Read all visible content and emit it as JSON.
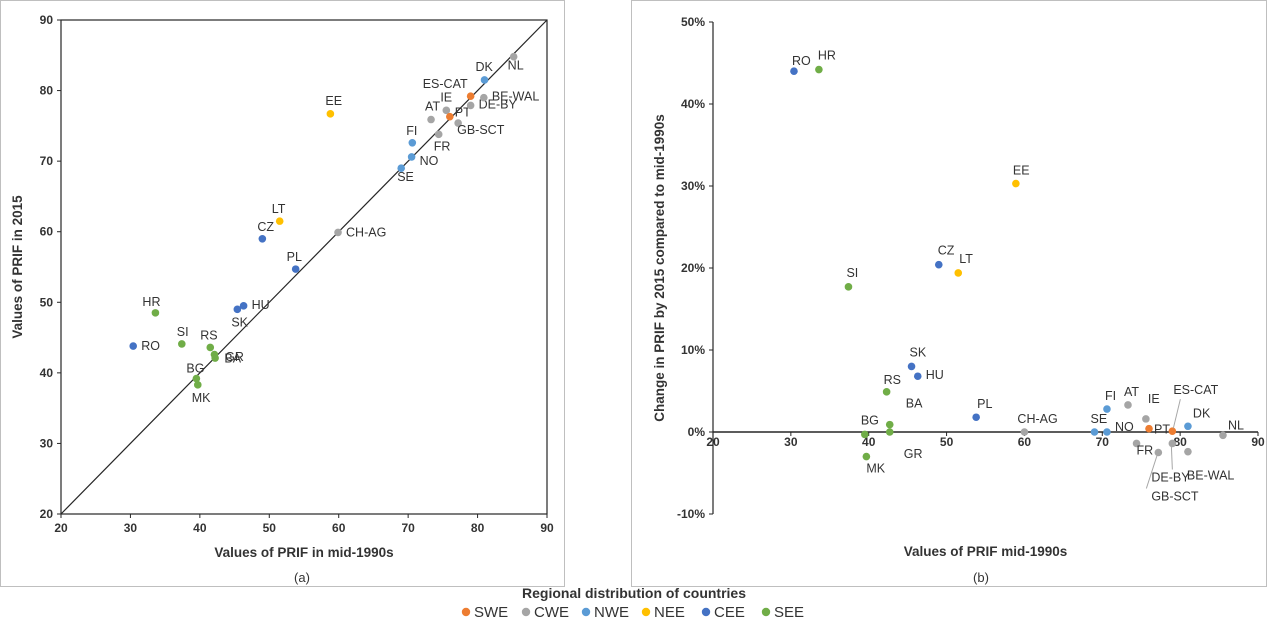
{
  "colors": {
    "SWE": "#ED7D31",
    "CWE": "#A5A5A5",
    "NWE": "#5B9BD5",
    "NEE": "#FFC000",
    "CEE": "#4472C4",
    "SEE": "#70AD47"
  },
  "legend": {
    "title": "Regional distribution of countries",
    "items": [
      {
        "key": "SWE",
        "label": "SWE"
      },
      {
        "key": "CWE",
        "label": "CWE"
      },
      {
        "key": "NWE",
        "label": "NWE"
      },
      {
        "key": "NEE",
        "label": "NEE"
      },
      {
        "key": "CEE",
        "label": "CEE"
      },
      {
        "key": "SEE",
        "label": "SEE"
      }
    ]
  },
  "chart_data": [
    {
      "type": "scatter",
      "panel": "(a)",
      "title": "",
      "xlabel": "Values of PRIF in mid-1990s",
      "ylabel": "Values of PRIF in 2015",
      "xlim": [
        20,
        90
      ],
      "ylim": [
        20,
        90
      ],
      "xticks": [
        20,
        30,
        40,
        50,
        60,
        70,
        80,
        90
      ],
      "yticks": [
        20,
        30,
        40,
        50,
        60,
        70,
        80,
        90
      ],
      "diagonal": true,
      "points": [
        {
          "label": "RO",
          "group": "CEE",
          "x": 30.4,
          "y": 43.8
        },
        {
          "label": "HR",
          "group": "SEE",
          "x": 33.6,
          "y": 48.5
        },
        {
          "label": "SI",
          "group": "SEE",
          "x": 37.4,
          "y": 44.1
        },
        {
          "label": "BG",
          "group": "SEE",
          "x": 39.5,
          "y": 39.2
        },
        {
          "label": "MK",
          "group": "SEE",
          "x": 39.7,
          "y": 38.3
        },
        {
          "label": "RS",
          "group": "SEE",
          "x": 41.5,
          "y": 43.6
        },
        {
          "label": "BA",
          "group": "SEE",
          "x": 42.1,
          "y": 42.6
        },
        {
          "label": "GR",
          "group": "SEE",
          "x": 42.2,
          "y": 42.1
        },
        {
          "label": "SK",
          "group": "CEE",
          "x": 45.4,
          "y": 49.0
        },
        {
          "label": "HU",
          "group": "CEE",
          "x": 46.3,
          "y": 49.5
        },
        {
          "label": "CZ",
          "group": "CEE",
          "x": 49.0,
          "y": 59.0
        },
        {
          "label": "LT",
          "group": "NEE",
          "x": 51.5,
          "y": 61.5
        },
        {
          "label": "PL",
          "group": "CEE",
          "x": 53.8,
          "y": 54.7
        },
        {
          "label": "EE",
          "group": "NEE",
          "x": 58.8,
          "y": 76.7
        },
        {
          "label": "CH-AG",
          "group": "CWE",
          "x": 59.9,
          "y": 59.9
        },
        {
          "label": "SE",
          "group": "NWE",
          "x": 69.0,
          "y": 69.0
        },
        {
          "label": "NO",
          "group": "NWE",
          "x": 70.5,
          "y": 70.6
        },
        {
          "label": "FI",
          "group": "NWE",
          "x": 70.6,
          "y": 72.6
        },
        {
          "label": "AT",
          "group": "CWE",
          "x": 73.3,
          "y": 75.9
        },
        {
          "label": "FR",
          "group": "CWE",
          "x": 74.4,
          "y": 73.8
        },
        {
          "label": "IE",
          "group": "CWE",
          "x": 75.5,
          "y": 77.2
        },
        {
          "label": "PT",
          "group": "SWE",
          "x": 76.0,
          "y": 76.3
        },
        {
          "label": "GB-SCT",
          "group": "CWE",
          "x": 77.2,
          "y": 75.4
        },
        {
          "label": "DE-BY",
          "group": "CWE",
          "x": 79.0,
          "y": 77.9
        },
        {
          "label": "ES-CAT",
          "group": "SWE",
          "x": 79.0,
          "y": 79.2
        },
        {
          "label": "BE-WAL",
          "group": "CWE",
          "x": 80.9,
          "y": 79.0
        },
        {
          "label": "DK",
          "group": "NWE",
          "x": 81.0,
          "y": 81.5
        },
        {
          "label": "NL",
          "group": "CWE",
          "x": 85.2,
          "y": 84.8
        }
      ]
    },
    {
      "type": "scatter",
      "panel": "(b)",
      "title": "",
      "xlabel": "Values of PRIF mid-1990s",
      "ylabel": "Change in PRIF by  2015 compared to mid-1990s",
      "xlim": [
        20,
        90
      ],
      "ylim": [
        -10,
        50
      ],
      "xticks": [
        20,
        30,
        40,
        50,
        60,
        70,
        80,
        90
      ],
      "yticks": [
        -10,
        0,
        10,
        20,
        30,
        40,
        50
      ],
      "ytick_labels": [
        "-10%",
        "0%",
        "10%",
        "20%",
        "30%",
        "40%",
        "50%"
      ],
      "points": [
        {
          "label": "RO",
          "group": "CEE",
          "x": 30.4,
          "y": 44.0
        },
        {
          "label": "HR",
          "group": "SEE",
          "x": 33.6,
          "y": 44.2
        },
        {
          "label": "SI",
          "group": "SEE",
          "x": 37.4,
          "y": 17.7
        },
        {
          "label": "BG",
          "group": "SEE",
          "x": 39.5,
          "y": -0.3
        },
        {
          "label": "MK",
          "group": "SEE",
          "x": 39.7,
          "y": -3.0
        },
        {
          "label": "RS",
          "group": "SEE",
          "x": 42.3,
          "y": 4.9
        },
        {
          "label": "BA",
          "group": "SEE",
          "x": 42.7,
          "y": 0.9
        },
        {
          "label": "GR",
          "group": "SEE",
          "x": 42.7,
          "y": 0.0
        },
        {
          "label": "SK",
          "group": "CEE",
          "x": 45.5,
          "y": 8.0
        },
        {
          "label": "HU",
          "group": "CEE",
          "x": 46.3,
          "y": 6.8
        },
        {
          "label": "CZ",
          "group": "CEE",
          "x": 49.0,
          "y": 20.4
        },
        {
          "label": "LT",
          "group": "NEE",
          "x": 51.5,
          "y": 19.4
        },
        {
          "label": "PL",
          "group": "CEE",
          "x": 53.8,
          "y": 1.8
        },
        {
          "label": "EE",
          "group": "NEE",
          "x": 58.9,
          "y": 30.3
        },
        {
          "label": "CH-AG",
          "group": "CWE",
          "x": 60.0,
          "y": 0.0
        },
        {
          "label": "SE",
          "group": "NWE",
          "x": 69.0,
          "y": 0.0
        },
        {
          "label": "NO",
          "group": "NWE",
          "x": 70.6,
          "y": 0.0
        },
        {
          "label": "FI",
          "group": "NWE",
          "x": 70.6,
          "y": 2.8
        },
        {
          "label": "AT",
          "group": "CWE",
          "x": 73.3,
          "y": 3.3
        },
        {
          "label": "FR",
          "group": "CWE",
          "x": 74.4,
          "y": -1.4
        },
        {
          "label": "IE",
          "group": "CWE",
          "x": 75.6,
          "y": 1.6
        },
        {
          "label": "PT",
          "group": "SWE",
          "x": 76.0,
          "y": 0.4
        },
        {
          "label": "GB-SCT",
          "group": "CWE",
          "x": 77.2,
          "y": -2.5
        },
        {
          "label": "DE-BY",
          "group": "CWE",
          "x": 79.0,
          "y": -1.4
        },
        {
          "label": "ES-CAT",
          "group": "SWE",
          "x": 79.0,
          "y": 0.1
        },
        {
          "label": "BE-WAL",
          "group": "CWE",
          "x": 81.0,
          "y": -2.4
        },
        {
          "label": "DK",
          "group": "NWE",
          "x": 81.0,
          "y": 0.7
        },
        {
          "label": "NL",
          "group": "CWE",
          "x": 85.5,
          "y": -0.4
        }
      ]
    }
  ]
}
